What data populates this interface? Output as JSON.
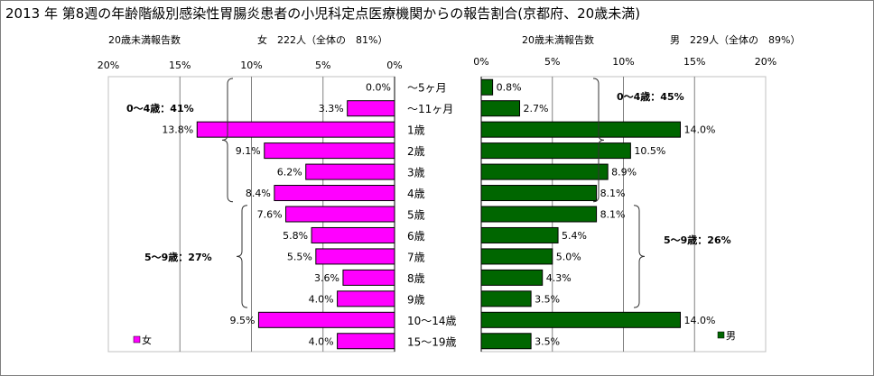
{
  "title": "2013 年 第8週の年齢階級別感染性胃腸炎患者の小児科定点医療機関からの報告割合(京都府、20歳未満)",
  "female": {
    "header_label": "20歳未満報告数",
    "header_detail": "女　222人（全体の　81%）",
    "legend": "女",
    "bracket_labels": [
      "0～4歳：41%",
      "5～9歳：27%"
    ]
  },
  "male": {
    "header_label": "20歳未満報告数",
    "header_detail": "男　229人（全体の　89%）",
    "legend": "男",
    "bracket_labels": [
      "0～4歳：45%",
      "5～9歳：26%"
    ]
  },
  "colors": {
    "female": "#ff00ff",
    "male": "#006600",
    "grid": "#808080"
  },
  "chart_data": [
    {
      "type": "bar",
      "orientation": "horizontal",
      "direction": "reversed",
      "categories": [
        "～5ヶ月",
        "～11ヶ月",
        "1歳",
        "2歳",
        "3歳",
        "4歳",
        "5歳",
        "6歳",
        "7歳",
        "8歳",
        "9歳",
        "10～14歳",
        "15～19歳"
      ],
      "series": [
        {
          "name": "女",
          "values": [
            0.0,
            3.3,
            13.8,
            9.1,
            6.2,
            8.4,
            7.6,
            5.8,
            5.5,
            3.6,
            4.0,
            9.5,
            4.0
          ]
        }
      ],
      "data_labels": [
        "0.0%",
        "3.3%",
        "13.8%",
        "9.1%",
        "6.2%",
        "8.4%",
        "7.6%",
        "5.8%",
        "5.5%",
        "3.6%",
        "4.0%",
        "9.5%",
        "4.0%"
      ],
      "xticks": [
        "20%",
        "15%",
        "10%",
        "5%",
        "0%"
      ],
      "xlim": [
        0,
        20
      ],
      "grid": true,
      "legend_position": "bottom-left"
    },
    {
      "type": "bar",
      "orientation": "horizontal",
      "categories": [
        "～5ヶ月",
        "～11ヶ月",
        "1歳",
        "2歳",
        "3歳",
        "4歳",
        "5歳",
        "6歳",
        "7歳",
        "8歳",
        "9歳",
        "10～14歳",
        "15～19歳"
      ],
      "series": [
        {
          "name": "男",
          "values": [
            0.8,
            2.7,
            14.0,
            10.5,
            8.9,
            8.1,
            8.1,
            5.4,
            5.0,
            4.3,
            3.5,
            14.0,
            3.5
          ]
        }
      ],
      "data_labels": [
        "0.8%",
        "2.7%",
        "14.0%",
        "10.5%",
        "8.9%",
        "8.1%",
        "8.1%",
        "5.4%",
        "5.0%",
        "4.3%",
        "3.5%",
        "14.0%",
        "3.5%"
      ],
      "xticks": [
        "0%",
        "5%",
        "10%",
        "15%",
        "20%"
      ],
      "xlim": [
        0,
        20
      ],
      "grid": true,
      "legend_position": "bottom-right"
    }
  ]
}
